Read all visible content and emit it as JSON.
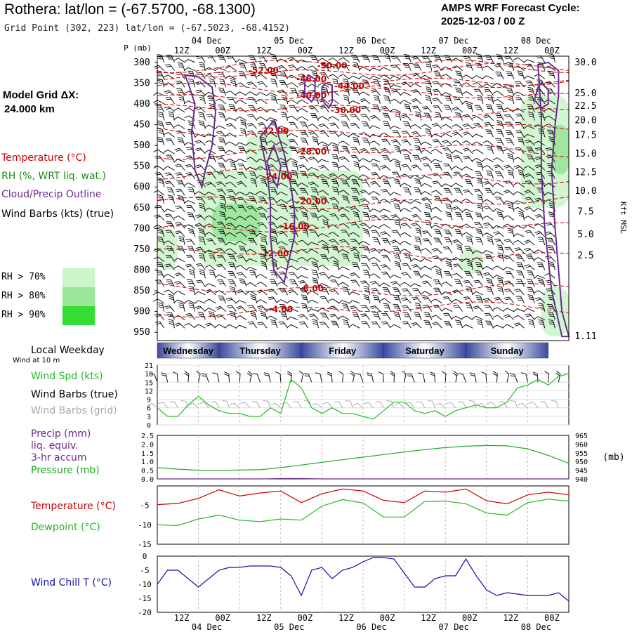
{
  "header": {
    "title": "Rothera:  lat/lon = (-67.5700, -68.1300)",
    "subtitle": "Grid Point (302, 223) lat/lon = (-67.5023, -68.4152)",
    "cycle_line1": "AMPS WRF Forecast Cycle:",
    "cycle_line2": "2025-12-03 / 00  Z",
    "model_grid_label": "Model Grid ΔX:",
    "model_grid_value": "24.000 km"
  },
  "legend": {
    "temperature": "Temperature (°C)",
    "rh": "RH (%, WRT liq. wat.)",
    "cloud": "Cloud/Precip Outline",
    "wind_barbs": "Wind Barbs (kts) (true)",
    "rh70": "RH > 70%",
    "rh80": "RH > 80%",
    "rh90": "RH > 90%",
    "local_weekday": "Local Weekday",
    "wind_at_10m": "Wind at 10 m",
    "wind_spd": "Wind Spd (kts)",
    "wind_barbs_true": "Wind Barbs (true)",
    "wind_barbs_grid": "Wind Barbs (grid)",
    "precip": "Precip (mm)",
    "liq_equiv": "liq. equiv.",
    "accum": "3-hr accum",
    "pressure": "Pressure (mb)",
    "temperature2": "Temperature (°C)",
    "dewpoint": "Dewpoint (°C)",
    "wind_chill": "Wind Chill T (°C)",
    "p_axis": "P (mb)",
    "kft": "Kft MSL",
    "mb_unit": "(mb)"
  },
  "colors": {
    "temperature": "#cc0000",
    "rh_legend": "#1a8a1a",
    "cloud": "#6a2a8e",
    "dewpoint": "#22bb22",
    "pressure": "#22aa22",
    "windspd": "#22bb22",
    "grey_barbs": "#aaaaaa",
    "windchill": "#1111aa",
    "rh70": "#ccf5cc",
    "rh80": "#99e699",
    "rh90": "#33dd33",
    "day_dark": "#3a4a9e",
    "day_light": "#ffffff"
  },
  "chart_data": [
    {
      "type": "table",
      "title": "Time axis",
      "top_day_labels": [
        "04 Dec",
        "05 Dec",
        "06 Dec",
        "07 Dec",
        "08 Dec"
      ],
      "top_hour_labels": [
        "12Z",
        "00Z",
        "12Z",
        "00Z",
        "12Z",
        "00Z",
        "12Z",
        "00Z",
        "12Z",
        "00Z"
      ],
      "bottom_hour_labels": [
        "12Z",
        "00Z",
        "12Z",
        "00Z",
        "12Z",
        "00Z",
        "12Z",
        "00Z",
        "12Z",
        "00Z"
      ],
      "bottom_day_labels": [
        "04 Dec",
        "05 Dec",
        "06 Dec",
        "07 Dec",
        "08 Dec"
      ],
      "weekdays": [
        "Wednesday",
        "Thursday",
        "Friday",
        "Saturday",
        "Sunday"
      ],
      "hours_range": [
        0,
        120
      ]
    },
    {
      "type": "heatmap",
      "title": "Vertical cross-section: temperature, RH, cloud outline, wind barbs",
      "ylabel": "P (mb)",
      "pressure_ticks": [
        300,
        350,
        400,
        450,
        500,
        550,
        600,
        650,
        700,
        750,
        800,
        850,
        900,
        950
      ],
      "height_ticks_kft": [
        "30.0",
        "25.0",
        "22.5",
        "20.0",
        "17.5",
        "15.0",
        "12.5",
        "10.0",
        "7.5",
        "5.0",
        "2.5",
        "1.11"
      ],
      "height_tick_pressures": [
        300,
        375,
        405,
        440,
        475,
        520,
        565,
        610,
        660,
        715,
        765,
        960
      ],
      "isotherms": [
        {
          "label": "-52.00",
          "p": 320,
          "hour": 31
        },
        {
          "label": "-50.00",
          "p": 308,
          "hour": 51
        },
        {
          "label": "-48.00",
          "p": 340,
          "hour": 45
        },
        {
          "label": "-44.00",
          "p": 357,
          "hour": 56
        },
        {
          "label": "-40.00",
          "p": 380,
          "hour": 45
        },
        {
          "label": "-36.00",
          "p": 415,
          "hour": 55
        },
        {
          "label": "-32.00",
          "p": 465,
          "hour": 34
        },
        {
          "label": "-28.00",
          "p": 515,
          "hour": 45
        },
        {
          "label": "-24.00",
          "p": 575,
          "hour": 35
        },
        {
          "label": "-20.00",
          "p": 635,
          "hour": 45
        },
        {
          "label": "-16.00",
          "p": 695,
          "hour": 40
        },
        {
          "label": "-12.00",
          "p": 760,
          "hour": 34
        },
        {
          "label": "-8.00",
          "p": 845,
          "hour": 45
        },
        {
          "label": "-4.00",
          "p": 895,
          "hour": 36
        }
      ],
      "rh_regions": [
        {
          "level": 70,
          "hours": [
            12,
            60
          ],
          "p": [
            560,
            790
          ]
        },
        {
          "level": 80,
          "hours": [
            16,
            30
          ],
          "p": [
            640,
            730
          ]
        },
        {
          "level": 70,
          "hours": [
            0,
            6
          ],
          "p": [
            700,
            800
          ]
        },
        {
          "level": 70,
          "hours": [
            26,
            39
          ],
          "p": [
            470,
            560
          ]
        },
        {
          "level": 70,
          "hours": [
            88,
            95
          ],
          "p": [
            745,
            810
          ]
        },
        {
          "level": 70,
          "hours": [
            106,
            120
          ],
          "p": [
            380,
            650
          ]
        },
        {
          "level": 80,
          "hours": [
            115,
            120
          ],
          "p": [
            450,
            570
          ]
        },
        {
          "level": 70,
          "hours": [
            112,
            120
          ],
          "p": [
            840,
            960
          ]
        }
      ]
    },
    {
      "type": "line",
      "title": "Wind Spd (kts) at 10 m",
      "ylim": [
        0,
        21
      ],
      "yticks": [
        0,
        3,
        6,
        9,
        12,
        15,
        18,
        21
      ],
      "x": [
        0,
        3,
        6,
        9,
        12,
        15,
        18,
        21,
        24,
        27,
        30,
        33,
        36,
        39,
        42,
        45,
        48,
        51,
        54,
        57,
        60,
        63,
        66,
        69,
        72,
        75,
        78,
        81,
        84,
        87,
        90,
        93,
        96,
        99,
        102,
        105,
        108,
        111,
        114,
        117,
        120
      ],
      "series": [
        {
          "name": "Wind Spd (kts)",
          "values": [
            6,
            3,
            3,
            7,
            10,
            7,
            5,
            4,
            4,
            3,
            3,
            6,
            4,
            16,
            13,
            6,
            4,
            6,
            4,
            4,
            3,
            2,
            5,
            8,
            8,
            5,
            4,
            5,
            3,
            5,
            6,
            7,
            6,
            6,
            8,
            13,
            14,
            16,
            14,
            17,
            18
          ]
        }
      ]
    },
    {
      "type": "line",
      "title": "Precip (mm) and Pressure (mb)",
      "ylim": [
        0,
        2.5
      ],
      "yticks": [
        0.0,
        0.5,
        1.0,
        1.5,
        2.0,
        2.5
      ],
      "y2lim": [
        940,
        965
      ],
      "y2ticks": [
        940,
        945,
        950,
        955,
        960,
        965
      ],
      "x": [
        0,
        6,
        12,
        18,
        24,
        30,
        36,
        42,
        48,
        54,
        60,
        66,
        72,
        78,
        84,
        90,
        96,
        102,
        108,
        114,
        120
      ],
      "series": [
        {
          "name": "Pressure (mb)",
          "axis": "right",
          "values": [
            946.5,
            945.6,
            945.0,
            944.9,
            945.1,
            945.3,
            946.5,
            948.0,
            949.5,
            951.0,
            952.5,
            954.0,
            955.5,
            956.8,
            958.0,
            958.8,
            959.2,
            959.0,
            957.3,
            953.5,
            949.0
          ]
        },
        {
          "name": "Precip (mm)",
          "axis": "left",
          "values": [
            0,
            0,
            0,
            0,
            0,
            0,
            0.02,
            0.02,
            0,
            0,
            0,
            0,
            0,
            0,
            0,
            0,
            0,
            0,
            0,
            0,
            0
          ]
        }
      ]
    },
    {
      "type": "line",
      "title": "Temperature and Dewpoint (°C)",
      "ylim": [
        -15,
        0
      ],
      "yticks": [
        -5,
        -10,
        -15
      ],
      "x": [
        0,
        6,
        12,
        18,
        24,
        30,
        36,
        42,
        48,
        54,
        60,
        66,
        72,
        78,
        84,
        90,
        96,
        102,
        108,
        114,
        120
      ],
      "series": [
        {
          "name": "Temperature (°C)",
          "values": [
            -4.8,
            -4.5,
            -3.2,
            -1.0,
            -2.6,
            -1.8,
            -1.3,
            -4.3,
            -2.0,
            -0.8,
            -1.3,
            -3.7,
            -4.3,
            -1.3,
            -1.6,
            -0.8,
            -3.8,
            -4.6,
            -2.3,
            -1.6,
            -2.3
          ]
        },
        {
          "name": "Dewpoint (°C)",
          "values": [
            -10.0,
            -10.2,
            -8.5,
            -7.5,
            -8.8,
            -9.2,
            -8.5,
            -8.8,
            -5.2,
            -3.5,
            -4.4,
            -8.0,
            -8.0,
            -4.0,
            -3.9,
            -4.6,
            -7.0,
            -7.5,
            -4.3,
            -3.4,
            -3.9
          ]
        }
      ]
    },
    {
      "type": "line",
      "title": "Wind Chill T (°C)",
      "ylim": [
        -20,
        0
      ],
      "yticks": [
        0,
        -5,
        -10,
        -15,
        -20
      ],
      "x": [
        0,
        3,
        6,
        9,
        12,
        15,
        18,
        21,
        24,
        27,
        30,
        33,
        36,
        39,
        42,
        45,
        48,
        51,
        54,
        57,
        60,
        63,
        66,
        69,
        72,
        75,
        78,
        81,
        84,
        87,
        90,
        93,
        96,
        99,
        102,
        105,
        108,
        111,
        114,
        117,
        120
      ],
      "series": [
        {
          "name": "Wind Chill T (°C)",
          "values": [
            -10,
            -5,
            -5,
            -8,
            -11,
            -8,
            -5,
            -4,
            -4,
            -3.5,
            -3.5,
            -3.5,
            -4,
            -7,
            -14,
            -5,
            -4,
            -8,
            -5,
            -4,
            -2,
            -0.5,
            -0.5,
            -1,
            -6,
            -11,
            -11,
            -8,
            -7,
            -7,
            -1,
            -7,
            -12,
            -14,
            -13,
            -13.5,
            -14,
            -14,
            -14,
            -13,
            -16
          ]
        }
      ]
    }
  ]
}
